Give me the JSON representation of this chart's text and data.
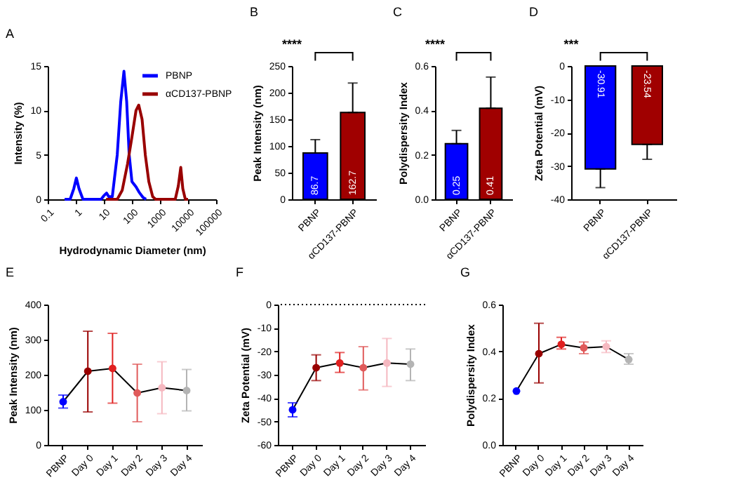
{
  "chart_data": [
    {
      "type": "line",
      "title": "A",
      "xlabel": "Hydrodynamic Diameter (nm)",
      "ylabel": "Intensity (%)",
      "log": "x",
      "xlim": [
        0.1,
        100000
      ],
      "xticks": [
        0.1,
        1,
        10,
        100,
        1000,
        10000,
        100000
      ],
      "ylim": [
        0,
        15
      ],
      "yticks": [
        0,
        5,
        10,
        15
      ],
      "legend": "top right",
      "series": [
        {
          "name": "PBNP",
          "color": "#0000ff",
          "x": [
            0.4,
            0.63,
            0.85,
            1.05,
            1.3,
            1.8,
            8,
            10,
            12.5,
            15,
            20,
            30,
            40,
            52,
            65,
            80,
            100,
            140,
            180,
            250,
            320
          ],
          "values": [
            0,
            0,
            1.2,
            2.4,
            1.2,
            0,
            0,
            0.4,
            0.7,
            0.3,
            0.3,
            5,
            11,
            14.4,
            11,
            5,
            2,
            1.4,
            0.8,
            0.2,
            0
          ]
        },
        {
          "name": "αCD137-PBNP",
          "color": "#990000",
          "x": [
            12,
            30,
            45,
            70,
            100,
            140,
            175,
            230,
            300,
            400,
            550,
            700,
            3500,
            4500,
            5500,
            6500,
            8000,
            10000
          ],
          "values": [
            0,
            0,
            1,
            4,
            7,
            10,
            10.6,
            9,
            5,
            2,
            0.3,
            0,
            0,
            1.5,
            3.6,
            1.2,
            0,
            0
          ]
        }
      ]
    },
    {
      "type": "bar",
      "title": "B",
      "ylabel": "Peak Intensity (nm)",
      "categories": [
        "PBNP",
        "αCD137-PBNP"
      ],
      "values": [
        86.7,
        162.7
      ],
      "colors": [
        "#0000ff",
        "#a00000"
      ],
      "errors": [
        [
          86.7,
          112
        ],
        [
          162.7,
          218
        ]
      ],
      "ylim": [
        0,
        250
      ],
      "yticks": [
        0,
        50,
        100,
        150,
        200,
        250
      ],
      "data_labels": true,
      "annotations": [
        "****"
      ]
    },
    {
      "type": "bar",
      "title": "C",
      "ylabel": "Polydispersity Index",
      "categories": [
        "PBNP",
        "αCD137-PBNP"
      ],
      "values": [
        0.25,
        0.41
      ],
      "colors": [
        "#0000ff",
        "#a00000"
      ],
      "errors": [
        [
          0.25,
          0.31
        ],
        [
          0.41,
          0.55
        ]
      ],
      "ylim": [
        0,
        0.6
      ],
      "yticks": [
        {
          "value": 0,
          "label": "0.0"
        },
        0.2,
        0.4,
        0.6
      ],
      "data_labels": true,
      "annotations": [
        "****"
      ]
    },
    {
      "type": "bar",
      "title": "D",
      "ylabel": "Zeta Potential (mV)",
      "categories": [
        "PBNP",
        "αCD137-PBNP"
      ],
      "values": [
        -30.91,
        -23.54
      ],
      "colors": [
        "#0000ff",
        "#a00000"
      ],
      "errors": [
        [
          -36.5,
          -30.91
        ],
        [
          -28,
          -23.54
        ]
      ],
      "ylim": [
        -40,
        0
      ],
      "yticks": [
        0,
        -10,
        -20,
        -30,
        -40
      ],
      "data_labels": true,
      "annotations": [
        "***"
      ]
    },
    {
      "type": "line",
      "title": "E",
      "ylabel": "Peak Intensity (nm)",
      "categories": [
        "PBNP",
        "Day 0",
        "Day 1",
        "Day 2",
        "Day 3",
        "Day 4"
      ],
      "values": [
        123,
        210,
        218,
        148,
        163,
        155
      ],
      "color": "#000000",
      "colors": [
        "#0000ff",
        "#990000",
        "#e02020",
        "#e05a5a",
        "#f5b8c0",
        "#b4b4b4"
      ],
      "errors": [
        [
          105,
          142
        ],
        [
          94,
          324
        ],
        [
          119,
          318
        ],
        [
          66,
          230
        ],
        [
          89,
          237
        ],
        [
          97,
          215
        ]
      ],
      "ylim": [
        0,
        400
      ],
      "yticks": [
        0,
        100,
        200,
        300,
        400
      ],
      "marker": "circle"
    },
    {
      "type": "line",
      "title": "F",
      "ylabel": "Zeta Potential (mV)",
      "categories": [
        "PBNP",
        "Day 0",
        "Day 1",
        "Day 2",
        "Day 3",
        "Day 4"
      ],
      "values": [
        -45,
        -27,
        -25,
        -27,
        -25,
        -25.5
      ],
      "color": "#000000",
      "colors": [
        "#0000ff",
        "#990000",
        "#e02020",
        "#e05a5a",
        "#f5b8c0",
        "#b4b4b4"
      ],
      "errors": [
        [
          -48,
          -42
        ],
        [
          -32.5,
          -21.5
        ],
        [
          -29,
          -20.5
        ],
        [
          -36.5,
          -18
        ],
        [
          -35,
          -14.5
        ],
        [
          -32.5,
          -19
        ]
      ],
      "ylim": [
        -60,
        0
      ],
      "yticks": [
        0,
        -10,
        -20,
        -30,
        -40,
        -50,
        -60
      ],
      "marker": "circle",
      "ref_lines": [
        {
          "axis": "y",
          "value": 0,
          "line_style": "dotted",
          "color": "#000000"
        }
      ]
    },
    {
      "type": "line",
      "title": "G",
      "ylabel": "Polydispersity Index",
      "categories": [
        "PBNP",
        "Day 0",
        "Day 1",
        "Day 2",
        "Day 3",
        "Day 4"
      ],
      "values": [
        0.23,
        0.39,
        0.43,
        0.415,
        0.42,
        0.365
      ],
      "color": "#000000",
      "colors": [
        "#0000ff",
        "#990000",
        "#e02020",
        "#e05a5a",
        "#f5b8c0",
        "#b4b4b4"
      ],
      "errors": [
        null,
        [
          0.265,
          0.52
        ],
        [
          0.41,
          0.46
        ],
        [
          0.39,
          0.44
        ],
        [
          0.395,
          0.445
        ],
        [
          0.345,
          0.39
        ]
      ],
      "ylim": [
        0,
        0.6
      ],
      "yticks": [
        {
          "value": 0,
          "label": "0.0"
        },
        0.2,
        0.4,
        0.6
      ],
      "marker": "circle"
    }
  ]
}
